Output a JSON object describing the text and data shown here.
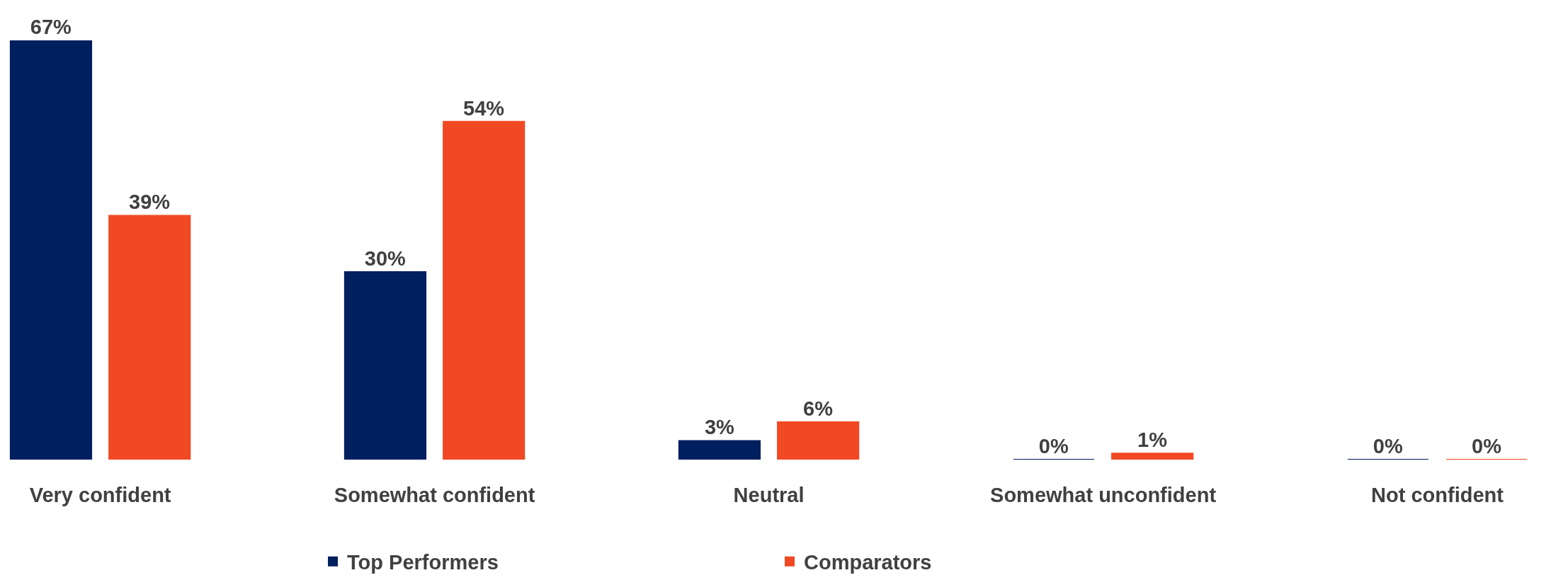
{
  "chart_data": {
    "type": "bar",
    "categories": [
      "Very confident",
      "Somewhat confident",
      "Neutral",
      "Somewhat unconfident",
      "Not confident"
    ],
    "series": [
      {
        "name": "Top Performers",
        "color": "#001f5f",
        "values": [
          67,
          30,
          3,
          0,
          0
        ],
        "value_labels": [
          "67%",
          "30%",
          "3%",
          "0%",
          "0%"
        ]
      },
      {
        "name": "Comparators",
        "color": "#f04923",
        "values": [
          39,
          54,
          6,
          1,
          0
        ],
        "value_labels": [
          "39%",
          "54%",
          "6%",
          "1%",
          "0%"
        ]
      }
    ],
    "legend": "bottom",
    "grid": false
  }
}
